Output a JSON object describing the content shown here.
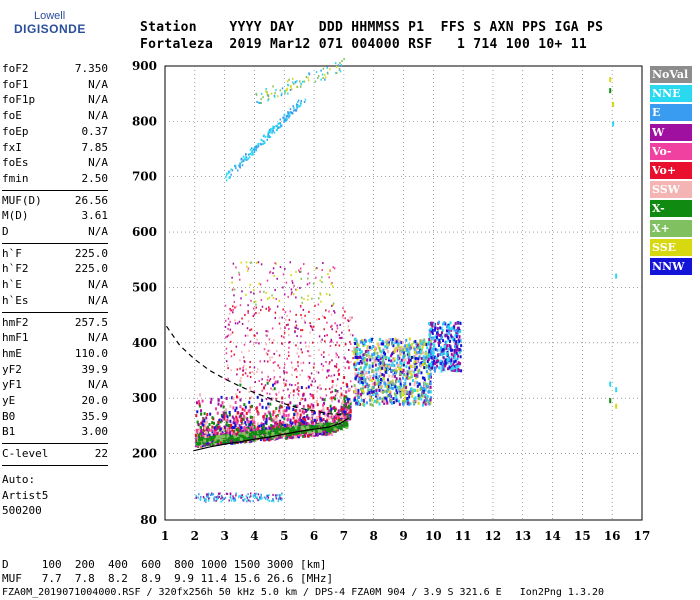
{
  "logo": {
    "line1": "Lowell",
    "line2": "DIGISONDE"
  },
  "header": {
    "line1": "Station    YYYY DAY   DDD HHMMSS P1  FFS S AXN PPS IGA PS",
    "line2": "Fortaleza  2019 Mar12 071 004000 RSF   1 714 100 10+ 11"
  },
  "params1": [
    {
      "label": "foF2",
      "value": "7.350"
    },
    {
      "label": "foF1",
      "value": "N/A"
    },
    {
      "label": "foF1p",
      "value": "N/A"
    },
    {
      "label": "foE",
      "value": "N/A"
    },
    {
      "label": "foEp",
      "value": "0.37"
    },
    {
      "label": "fxI",
      "value": "7.85"
    },
    {
      "label": "foEs",
      "value": "N/A"
    },
    {
      "label": "fmin",
      "value": "2.50"
    }
  ],
  "params2": [
    {
      "label": "MUF(D)",
      "value": "26.56"
    },
    {
      "label": "M(D)",
      "value": "3.61"
    },
    {
      "label": "D",
      "value": "N/A"
    }
  ],
  "params3": [
    {
      "label": "h`F",
      "value": "225.0"
    },
    {
      "label": "h`F2",
      "value": "225.0"
    },
    {
      "label": "h`E",
      "value": "N/A"
    },
    {
      "label": "h`Es",
      "value": "N/A"
    }
  ],
  "params4": [
    {
      "label": "hmF2",
      "value": "257.5"
    },
    {
      "label": "hmF1",
      "value": "N/A"
    },
    {
      "label": "hmE",
      "value": "110.0"
    },
    {
      "label": "yF2",
      "value": "39.9"
    },
    {
      "label": "yF1",
      "value": "N/A"
    },
    {
      "label": "yE",
      "value": "20.0"
    },
    {
      "label": "B0",
      "value": "35.9"
    },
    {
      "label": "B1",
      "value": "3.00"
    }
  ],
  "clevel": {
    "label": "C-level",
    "value": "22"
  },
  "auto": {
    "line1": "Auto:",
    "line2": "Artist5",
    "line3": "500200"
  },
  "footer": {
    "d_row": "D     100  200  400  600  800 1000 1500 3000 [km]",
    "muf_row": "MUF   7.7  7.8  8.2  8.9  9.9 11.4 15.6 26.6 [MHz]",
    "file_row": "FZA0M_2019071004000.RSF / 320fx256h 50 kHz 5.0 km / DPS-4 FZA0M 904 / 3.9 S 321.6 E   Ion2Png 1.3.20"
  },
  "chart_data": {
    "type": "scatter",
    "title": "",
    "xlabel": "",
    "ylabel": "",
    "xlim": [
      1,
      17
    ],
    "ylim": [
      80,
      900
    ],
    "x_ticks": [
      "1",
      "2",
      "3",
      "4",
      "5",
      "6",
      "7",
      "8",
      "9",
      "10",
      "11",
      "12",
      "13",
      "14",
      "15",
      "16",
      "17"
    ],
    "y_ticks": [
      "80",
      "200",
      "300",
      "400",
      "500",
      "600",
      "700",
      "800",
      "900"
    ],
    "legend_placement": "right",
    "legend": [
      {
        "name": "NoVal",
        "color": "#8c8c8c"
      },
      {
        "name": "NNE",
        "color": "#2ad8f0"
      },
      {
        "name": "E",
        "color": "#3a9cf0"
      },
      {
        "name": "W",
        "color": "#a010a0"
      },
      {
        "name": "Vo-",
        "color": "#f040a0"
      },
      {
        "name": "Vo+",
        "color": "#e8102c"
      },
      {
        "name": "SSW",
        "color": "#f4b4b4"
      },
      {
        "name": "X-",
        "color": "#108a10"
      },
      {
        "name": "X+",
        "color": "#80c060"
      },
      {
        "name": "SSE",
        "color": "#d8d810"
      },
      {
        "name": "NNW",
        "color": "#1414d8"
      }
    ],
    "trace_F2_O": [
      [
        1.95,
        205
      ],
      [
        2.5,
        212
      ],
      [
        3,
        217
      ],
      [
        3.5,
        221
      ],
      [
        4,
        226
      ],
      [
        4.5,
        230
      ],
      [
        5,
        235
      ],
      [
        5.5,
        240
      ],
      [
        6,
        244
      ],
      [
        6.5,
        248
      ],
      [
        6.9,
        255
      ],
      [
        7.15,
        264
      ]
    ],
    "trace_F2_upper": [
      [
        1.05,
        430
      ],
      [
        1.5,
        395
      ],
      [
        2,
        370
      ],
      [
        2.5,
        350
      ],
      [
        3,
        335
      ],
      [
        3.5,
        322
      ],
      [
        4,
        310
      ],
      [
        4.5,
        300
      ],
      [
        5,
        290
      ],
      [
        5.5,
        282
      ],
      [
        6,
        277
      ],
      [
        6.5,
        272
      ],
      [
        6.9,
        270
      ]
    ]
  }
}
